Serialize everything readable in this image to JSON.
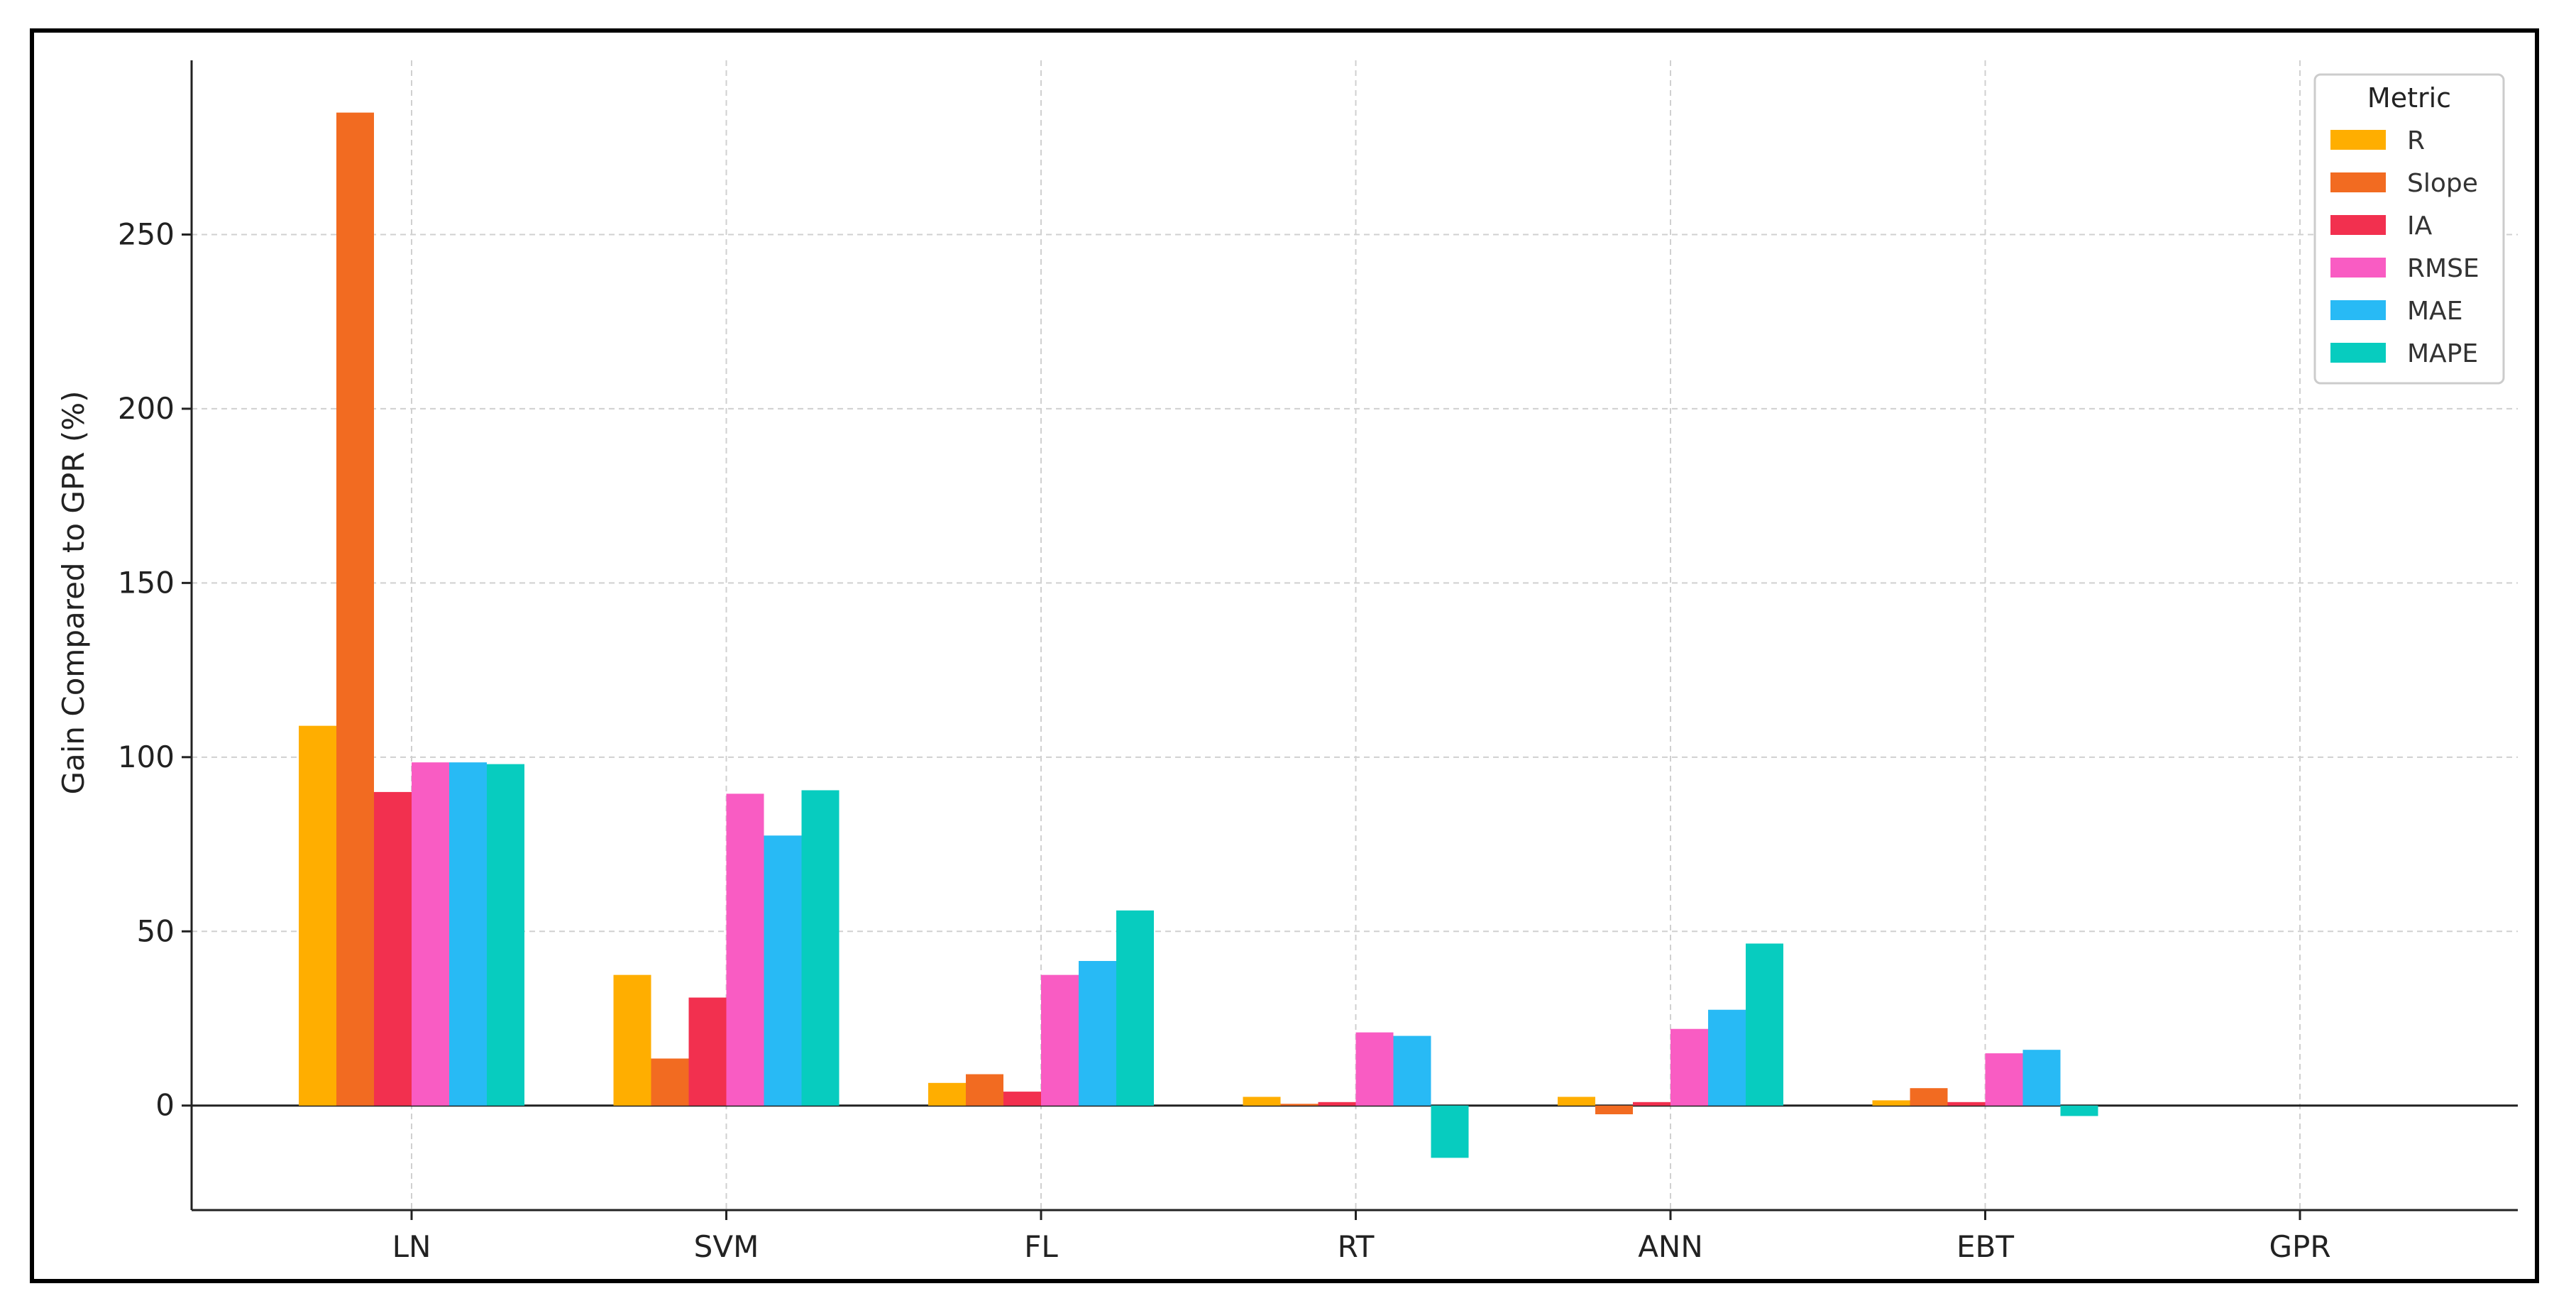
{
  "chart_data": {
    "type": "bar",
    "title": "",
    "xlabel": "",
    "ylabel": "Gain Compared to GPR (%)",
    "categories": [
      "LN",
      "SVM",
      "FL",
      "RT",
      "ANN",
      "EBT",
      "GPR"
    ],
    "ylim": [
      -30,
      300
    ],
    "yticks": [
      0,
      50,
      100,
      150,
      200,
      250
    ],
    "grid": true,
    "legend": {
      "title": "Metric",
      "placement": "top-right"
    },
    "series": [
      {
        "name": "R",
        "color": "#FFAE00",
        "values": [
          109,
          37.5,
          6.5,
          2.5,
          2.5,
          1.5,
          0
        ]
      },
      {
        "name": "Slope",
        "color": "#F26B21",
        "values": [
          285,
          13.5,
          9,
          0.5,
          -2.5,
          5,
          0
        ]
      },
      {
        "name": "IA",
        "color": "#F2304F",
        "values": [
          90,
          31,
          4,
          1,
          1,
          1,
          0
        ]
      },
      {
        "name": "RMSE",
        "color": "#F95CC3",
        "values": [
          98.5,
          89.5,
          37.5,
          21,
          22,
          15,
          0
        ]
      },
      {
        "name": "MAE",
        "color": "#28BAF5",
        "values": [
          98.5,
          77.5,
          41.5,
          20,
          27.5,
          16,
          0
        ]
      },
      {
        "name": "MAPE",
        "color": "#07CCBF",
        "values": [
          98,
          90.5,
          56,
          -15,
          46.5,
          -3,
          0
        ]
      }
    ]
  }
}
